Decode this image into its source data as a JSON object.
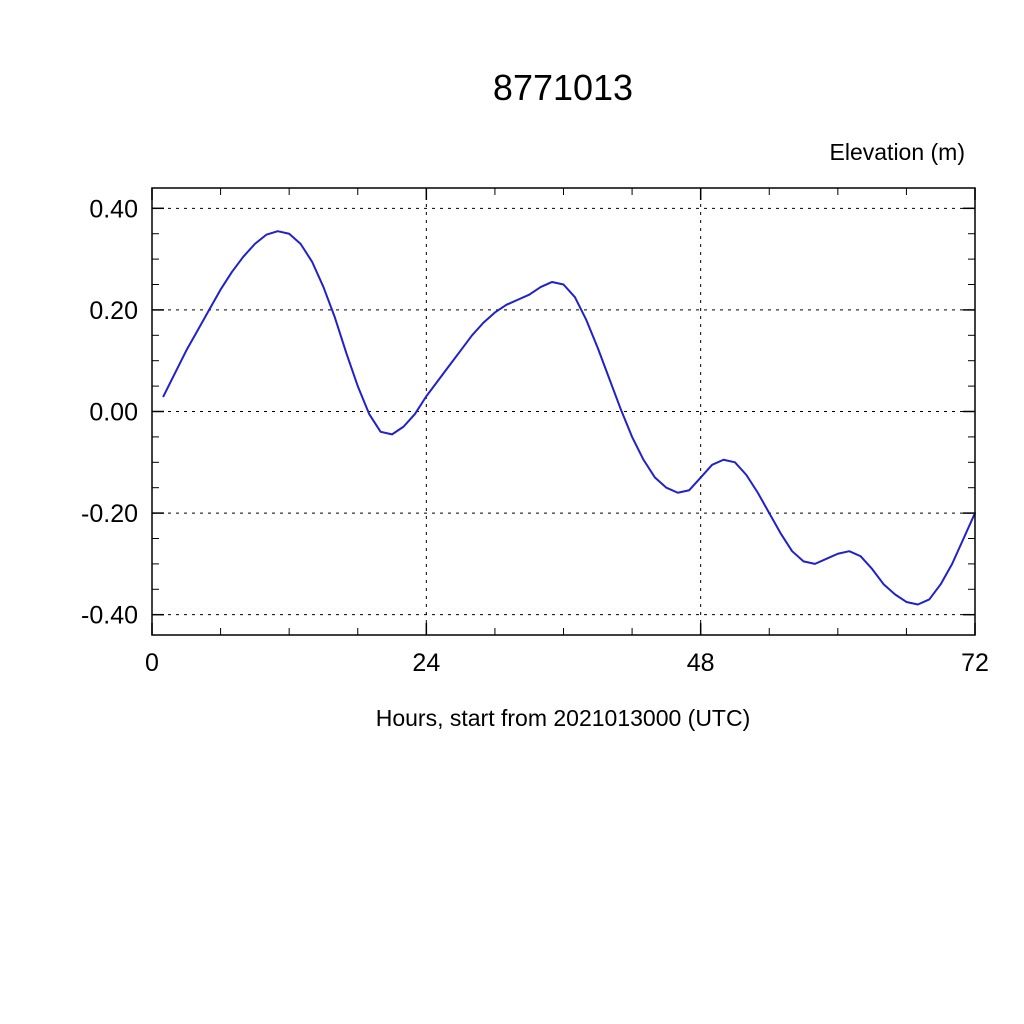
{
  "title": "8771013",
  "ylabel": "Elevation (m)",
  "xlabel": "Hours, start from 2021013000 (UTC)",
  "line_color": "#2121cc",
  "axis_color": "#000000",
  "grid_style": "dashed",
  "chart_data": {
    "type": "line",
    "title": "8771013",
    "xlabel": "Hours, start from 2021013000 (UTC)",
    "ylabel": "Elevation (m)",
    "xlim": [
      0,
      72
    ],
    "ylim": [
      -0.44,
      0.44
    ],
    "xticks": [
      0,
      24,
      48,
      72
    ],
    "yticks": [
      -0.4,
      -0.2,
      0.0,
      0.2,
      0.4
    ],
    "x_minor_tick_step": 6,
    "y_minor_tick_step": 0.05,
    "grid": "dashed",
    "legend": "none",
    "x": [
      1,
      2,
      3,
      4,
      5,
      6,
      7,
      8,
      9,
      10,
      11,
      12,
      13,
      14,
      15,
      16,
      17,
      18,
      19,
      20,
      21,
      22,
      23,
      24,
      25,
      26,
      27,
      28,
      29,
      30,
      31,
      32,
      33,
      34,
      35,
      36,
      37,
      38,
      39,
      40,
      41,
      42,
      43,
      44,
      45,
      46,
      47,
      48,
      49,
      50,
      51,
      52,
      53,
      54,
      55,
      56,
      57,
      58,
      59,
      60,
      61,
      62,
      63,
      64,
      65,
      66,
      67,
      68,
      69,
      70,
      71,
      72
    ],
    "series": [
      {
        "name": "elevation",
        "values": [
          0.03,
          0.075,
          0.12,
          0.16,
          0.2,
          0.24,
          0.275,
          0.305,
          0.33,
          0.348,
          0.355,
          0.35,
          0.33,
          0.295,
          0.245,
          0.185,
          0.115,
          0.05,
          -0.005,
          -0.04,
          -0.045,
          -0.03,
          -0.005,
          0.03,
          0.06,
          0.09,
          0.12,
          0.15,
          0.175,
          0.195,
          0.21,
          0.22,
          0.23,
          0.245,
          0.255,
          0.25,
          0.225,
          0.18,
          0.125,
          0.065,
          0.005,
          -0.05,
          -0.095,
          -0.13,
          -0.15,
          -0.16,
          -0.155,
          -0.13,
          -0.105,
          -0.095,
          -0.1,
          -0.125,
          -0.16,
          -0.2,
          -0.24,
          -0.275,
          -0.295,
          -0.3,
          -0.29,
          -0.28,
          -0.275,
          -0.285,
          -0.31,
          -0.34,
          -0.36,
          -0.375,
          -0.38,
          -0.37,
          -0.34,
          -0.3,
          -0.25,
          -0.2
        ]
      }
    ]
  }
}
